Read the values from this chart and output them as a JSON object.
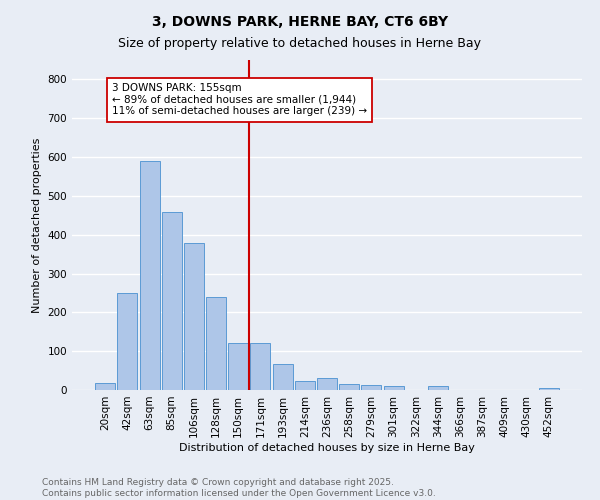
{
  "title": "3, DOWNS PARK, HERNE BAY, CT6 6BY",
  "subtitle": "Size of property relative to detached houses in Herne Bay",
  "xlabel": "Distribution of detached houses by size in Herne Bay",
  "ylabel": "Number of detached properties",
  "bar_labels": [
    "20sqm",
    "42sqm",
    "63sqm",
    "85sqm",
    "106sqm",
    "128sqm",
    "150sqm",
    "171sqm",
    "193sqm",
    "214sqm",
    "236sqm",
    "258sqm",
    "279sqm",
    "301sqm",
    "322sqm",
    "344sqm",
    "366sqm",
    "387sqm",
    "409sqm",
    "430sqm",
    "452sqm"
  ],
  "bar_values": [
    18,
    250,
    590,
    458,
    378,
    240,
    120,
    120,
    68,
    22,
    30,
    15,
    13,
    10,
    0,
    10,
    0,
    0,
    0,
    0,
    5
  ],
  "bar_color": "#aec6e8",
  "bar_edgecolor": "#5b9bd5",
  "ylim": [
    0,
    850
  ],
  "yticks": [
    0,
    100,
    200,
    300,
    400,
    500,
    600,
    700,
    800
  ],
  "vline_x_index": 6.5,
  "vline_color": "#cc0000",
  "annotation_text": "3 DOWNS PARK: 155sqm\n← 89% of detached houses are smaller (1,944)\n11% of semi-detached houses are larger (239) →",
  "annotation_box_color": "#ffffff",
  "annotation_box_edgecolor": "#cc0000",
  "background_color": "#e8edf5",
  "grid_color": "#ffffff",
  "footnote": "Contains HM Land Registry data © Crown copyright and database right 2025.\nContains public sector information licensed under the Open Government Licence v3.0.",
  "title_fontsize": 10,
  "subtitle_fontsize": 9,
  "xlabel_fontsize": 8,
  "ylabel_fontsize": 8,
  "tick_fontsize": 7.5,
  "annotation_fontsize": 7.5,
  "footnote_fontsize": 6.5
}
